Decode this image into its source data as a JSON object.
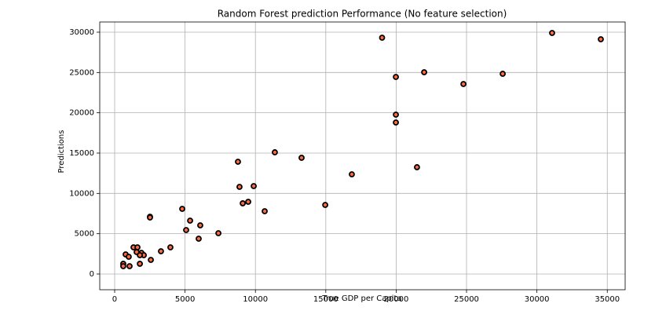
{
  "chart_data": {
    "type": "scatter",
    "title": "Random Forest prediction Performance (No feature selection)",
    "xlabel": "True GDP per Capita",
    "ylabel": "Predictions",
    "x": [
      19000,
      31080,
      34540,
      21990,
      19980,
      24780,
      27570,
      19980,
      19980,
      21480,
      16850,
      11380,
      13280,
      8760,
      8870,
      9880,
      9490,
      9100,
      10660,
      14960,
      4800,
      2510,
      2510,
      5360,
      6080,
      5080,
      7370,
      5970,
      3960,
      3290,
      1340,
      1620,
      1560,
      1900,
      2070,
      1790,
      780,
      1000,
      2570,
      1790,
      610,
      610,
      1060
    ],
    "values": [
      29320,
      29900,
      29120,
      25030,
      24450,
      23570,
      24840,
      19770,
      18800,
      13250,
      12370,
      15100,
      14420,
      13930,
      10810,
      10910,
      8960,
      8770,
      7790,
      8570,
      8080,
      7110,
      7010,
      6620,
      6040,
      5450,
      5060,
      4380,
      3310,
      2820,
      3310,
      3310,
      2730,
      2630,
      2340,
      2340,
      2430,
      2140,
      1750,
      1270,
      1270,
      970,
      970
    ],
    "color": "#ff6a3d",
    "edge_color": "#000000",
    "xlim": [
      -1060,
      36270
    ],
    "ylim": [
      -1950,
      31265
    ],
    "xticks": [
      0,
      5000,
      10000,
      15000,
      20000,
      25000,
      30000,
      35000
    ],
    "yticks": [
      0,
      5000,
      10000,
      15000,
      20000,
      25000,
      30000
    ],
    "grid": true
  }
}
